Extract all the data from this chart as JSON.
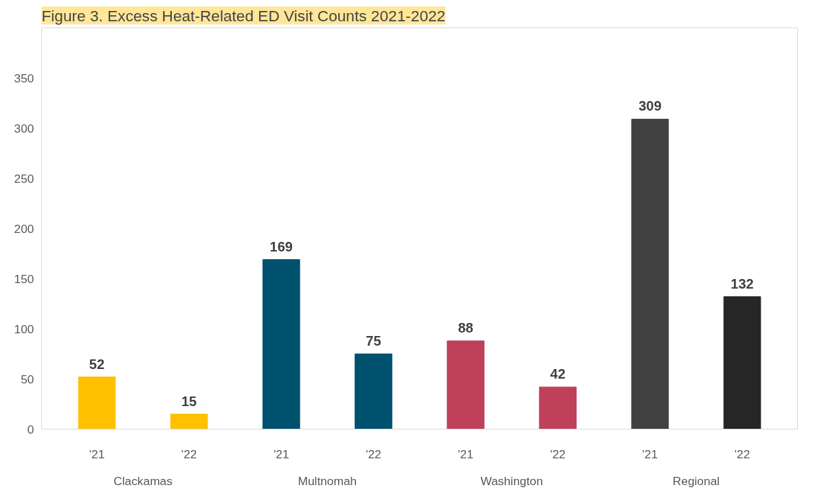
{
  "chart_data": {
    "type": "bar",
    "title": "Figure 3. Excess Heat-Related ED Visit Counts 2021-2022",
    "categories": [
      "'21",
      "'22",
      "'21",
      "'22",
      "'21",
      "'22",
      "'21",
      "'22"
    ],
    "values": [
      52,
      15,
      169,
      75,
      88,
      42,
      309,
      132
    ],
    "colors": [
      "#ffc000",
      "#ffc000",
      "#00516e",
      "#00516e",
      "#c0405c",
      "#c0405c",
      "#404040",
      "#262626"
    ],
    "annotations": [
      "Clackamas",
      "Multnomah",
      "Washington",
      "Regional"
    ],
    "ylim": [
      0,
      400
    ],
    "yticks": [
      0,
      50,
      100,
      150,
      200,
      250,
      300,
      350
    ],
    "data_labels": true,
    "grid": false
  }
}
